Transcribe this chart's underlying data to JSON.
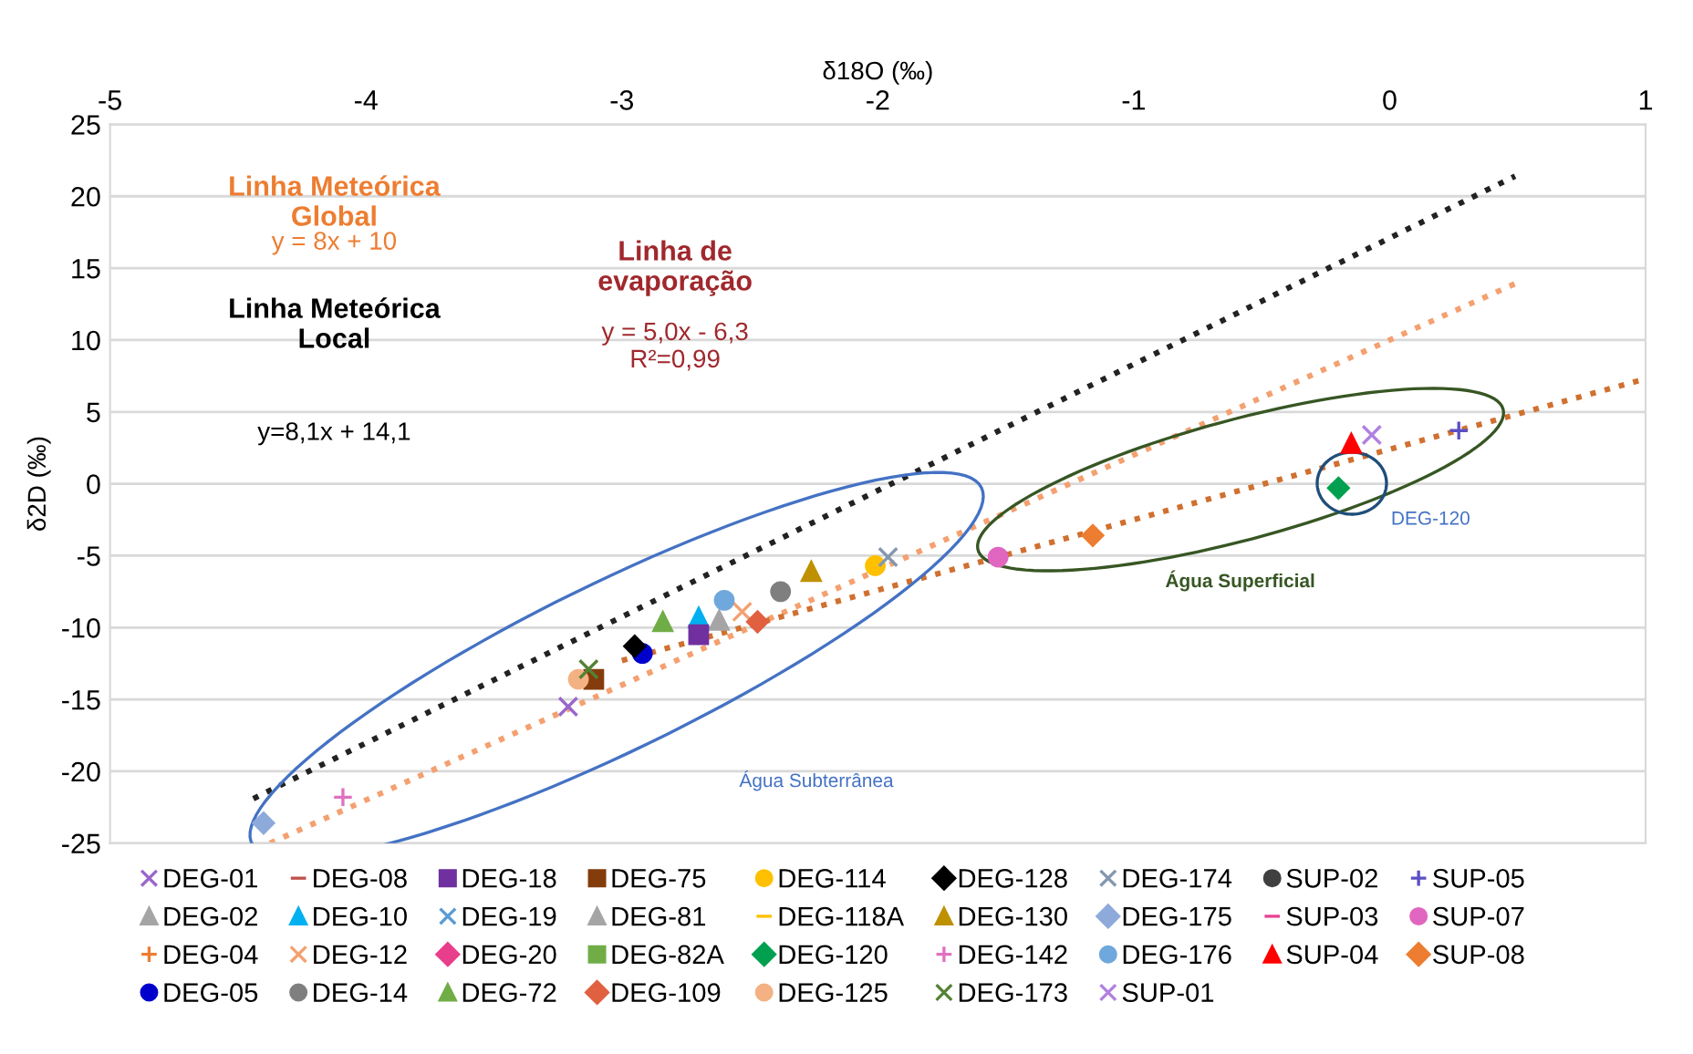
{
  "chart_data": {
    "type": "scatter",
    "xlabel": "δ18O (‰)",
    "ylabel": "δ2D (‰)",
    "xlim": [
      -5,
      1
    ],
    "xticks": [
      -5,
      -4,
      -3,
      -2,
      -1,
      0,
      1
    ],
    "ylim": [
      -25,
      25
    ],
    "yticks": [
      -25,
      -20,
      -15,
      -10,
      -5,
      0,
      5,
      10,
      15,
      20,
      25
    ],
    "grid": "y",
    "legend": "bottom",
    "series": [
      {
        "name": "DEG-01",
        "color": "#9966cc",
        "marker": "cross",
        "x": [
          -3.21
        ],
        "values": [
          -15.5
        ]
      },
      {
        "name": "DEG-02",
        "color": "#a5a5a5",
        "marker": "triangle",
        "x": [
          -2.62
        ],
        "values": [
          -9.5
        ]
      },
      {
        "name": "DEG-04",
        "color": "#ed7d31",
        "marker": "plus",
        "x": [
          null
        ],
        "values": [
          null
        ]
      },
      {
        "name": "DEG-05",
        "color": "#0000cc",
        "marker": "circle",
        "x": [
          -2.92
        ],
        "values": [
          -11.8
        ]
      },
      {
        "name": "DEG-08",
        "color": "#c0504d",
        "marker": "dash",
        "x": [
          null
        ],
        "values": [
          null
        ]
      },
      {
        "name": "DEG-10",
        "color": "#00b0f0",
        "marker": "triangle",
        "x": [
          -2.7
        ],
        "values": [
          -9.3
        ]
      },
      {
        "name": "DEG-12",
        "color": "#f4a070",
        "marker": "cross",
        "x": [
          -2.53
        ],
        "values": [
          -8.9
        ]
      },
      {
        "name": "DEG-14",
        "color": "#7f7f7f",
        "marker": "circle",
        "x": [
          -2.38
        ],
        "values": [
          -7.5
        ]
      },
      {
        "name": "DEG-18",
        "color": "#7030a0",
        "marker": "square",
        "x": [
          -2.7
        ],
        "values": [
          -10.5
        ]
      },
      {
        "name": "DEG-19",
        "color": "#5b9bd5",
        "marker": "cross",
        "x": [
          null
        ],
        "values": [
          null
        ]
      },
      {
        "name": "DEG-20",
        "color": "#e83e8c",
        "marker": "diamond",
        "x": [
          null
        ],
        "values": [
          null
        ]
      },
      {
        "name": "DEG-72",
        "color": "#70ad47",
        "marker": "triangle",
        "x": [
          -2.84
        ],
        "values": [
          -9.6
        ]
      },
      {
        "name": "DEG-75",
        "color": "#843c0c",
        "marker": "square",
        "x": [
          -3.11
        ],
        "values": [
          -13.6
        ]
      },
      {
        "name": "DEG-81",
        "color": "#a5a5a5",
        "marker": "triangle",
        "x": [
          null
        ],
        "values": [
          null
        ]
      },
      {
        "name": "DEG-82A",
        "color": "#70ad47",
        "marker": "square",
        "x": [
          null
        ],
        "values": [
          null
        ]
      },
      {
        "name": "DEG-109",
        "color": "#e06040",
        "marker": "diamond",
        "x": [
          -2.47
        ],
        "values": [
          -9.6
        ]
      },
      {
        "name": "DEG-114",
        "color": "#ffc000",
        "marker": "circle",
        "x": [
          -2.01
        ],
        "values": [
          -5.7
        ]
      },
      {
        "name": "DEG-118A",
        "color": "#ffc000",
        "marker": "dash",
        "x": [
          null
        ],
        "values": [
          null
        ]
      },
      {
        "name": "DEG-120",
        "color": "#00a050",
        "marker": "diamond",
        "x": [
          -0.2
        ],
        "values": [
          -0.3
        ]
      },
      {
        "name": "DEG-125",
        "color": "#f4b183",
        "marker": "circle",
        "x": [
          -3.17
        ],
        "values": [
          -13.6
        ]
      },
      {
        "name": "DEG-128",
        "color": "#000000",
        "marker": "diamond",
        "x": [
          -2.95
        ],
        "values": [
          -11.3
        ]
      },
      {
        "name": "DEG-130",
        "color": "#bf9000",
        "marker": "triangle",
        "x": [
          -2.26
        ],
        "values": [
          -6.1
        ]
      },
      {
        "name": "DEG-142",
        "color": "#e070c0",
        "marker": "plus",
        "x": [
          -4.09
        ],
        "values": [
          -21.8
        ]
      },
      {
        "name": "DEG-173",
        "color": "#548235",
        "marker": "cross",
        "x": [
          -3.13
        ],
        "values": [
          -12.9
        ]
      },
      {
        "name": "DEG-174",
        "color": "#8497b0",
        "marker": "cross",
        "x": [
          -1.96
        ],
        "values": [
          -5.1
        ]
      },
      {
        "name": "DEG-175",
        "color": "#8eaadb",
        "marker": "diamond",
        "x": [
          -4.4
        ],
        "values": [
          -23.6
        ]
      },
      {
        "name": "DEG-176",
        "color": "#6fa8dc",
        "marker": "circle",
        "x": [
          -2.6
        ],
        "values": [
          -8.1
        ]
      },
      {
        "name": "SUP-01",
        "color": "#b080e0",
        "marker": "cross",
        "x": [
          -0.07
        ],
        "values": [
          3.4
        ]
      },
      {
        "name": "SUP-02",
        "color": "#404040",
        "marker": "circle",
        "x": [
          null
        ],
        "values": [
          null
        ]
      },
      {
        "name": "SUP-03",
        "color": "#e84393",
        "marker": "dash",
        "x": [
          null
        ],
        "values": [
          null
        ]
      },
      {
        "name": "SUP-04",
        "color": "#ff0000",
        "marker": "triangle",
        "x": [
          -0.15
        ],
        "values": [
          2.8
        ]
      },
      {
        "name": "SUP-05",
        "color": "#5b4fc4",
        "marker": "plus",
        "x": [
          0.27
        ],
        "values": [
          3.7
        ]
      },
      {
        "name": "SUP-07",
        "color": "#e066c0",
        "marker": "circle",
        "x": [
          -1.53
        ],
        "values": [
          -5.1
        ]
      },
      {
        "name": "SUP-08",
        "color": "#ed7d31",
        "marker": "diamond",
        "x": [
          -1.16
        ],
        "values": [
          -3.6
        ]
      },
      {
        "type": "line",
        "color": "#222222",
        "line_style": "dotted",
        "x": [
          -4.44,
          0.49
        ],
        "values": [
          -21.9,
          21.4
        ]
      },
      {
        "type": "line",
        "color": "#f4a070",
        "line_style": "dotted",
        "x": [
          -4.375,
          0.5
        ],
        "values": [
          -25.0,
          14.0
        ]
      },
      {
        "type": "line",
        "color": "#d07030",
        "line_style": "dotted",
        "x": [
          -3.0,
          1.0
        ],
        "values": [
          -12.3,
          7.3
        ]
      }
    ],
    "annotations": [
      "Linha Meteórica\nGlobal",
      "y = 8x + 10",
      "Linha Meteórica\nLocal",
      "y=8,1x + 14,1",
      "Linha de\nevaporação",
      "y = 5,0x - 6,3\nR²=0,99",
      "Água Subterrânea",
      "Água Superficial",
      "DEG-120"
    ]
  }
}
